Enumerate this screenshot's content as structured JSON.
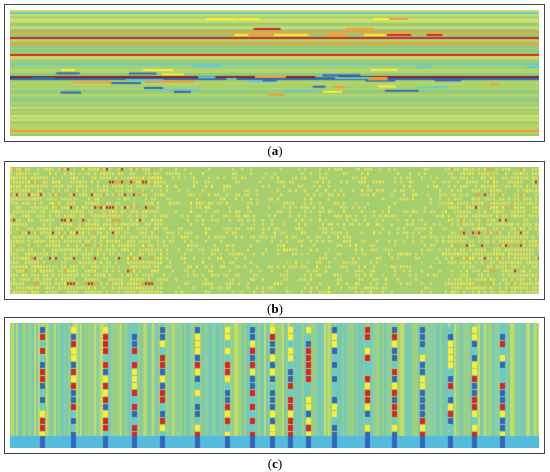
{
  "figure": {
    "panels": [
      {
        "id": "a",
        "caption": "a",
        "pattern": "sparse-horizontal-bands"
      },
      {
        "id": "b",
        "caption": "b",
        "pattern": "dense-short-dashes"
      },
      {
        "id": "c",
        "caption": "c",
        "pattern": "periodic-vertical-stripes"
      }
    ]
  },
  "colors": {
    "background_green": "#99cc66",
    "cyan": "#66cccc",
    "blue": "#3366bb",
    "yellow": "#ffee33",
    "orange": "#ff9933",
    "red": "#dd2222",
    "dark_red": "#882222"
  }
}
